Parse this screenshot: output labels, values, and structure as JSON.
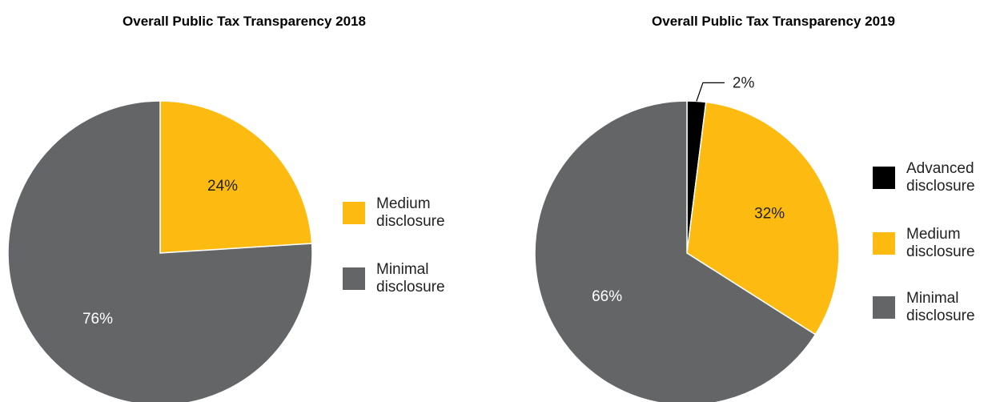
{
  "chart_data": [
    {
      "type": "pie",
      "title": "Overall Public Tax Transparency 2018",
      "categories": [
        "Medium disclosure",
        "Minimal disclosure"
      ],
      "values": [
        24,
        76
      ],
      "value_labels": [
        "24%",
        "76%"
      ],
      "colors": [
        "#fdbb11",
        "#646567"
      ],
      "legend": "right"
    },
    {
      "type": "pie",
      "title": "Overall Public Tax Transparency 2019",
      "categories": [
        "Advanced disclosure",
        "Medium disclosure",
        "Minimal disclosure"
      ],
      "values": [
        2,
        32,
        66
      ],
      "value_labels": [
        "2%",
        "32%",
        "66%"
      ],
      "colors": [
        "#000000",
        "#fdbb11",
        "#646567"
      ],
      "legend": "right"
    }
  ]
}
